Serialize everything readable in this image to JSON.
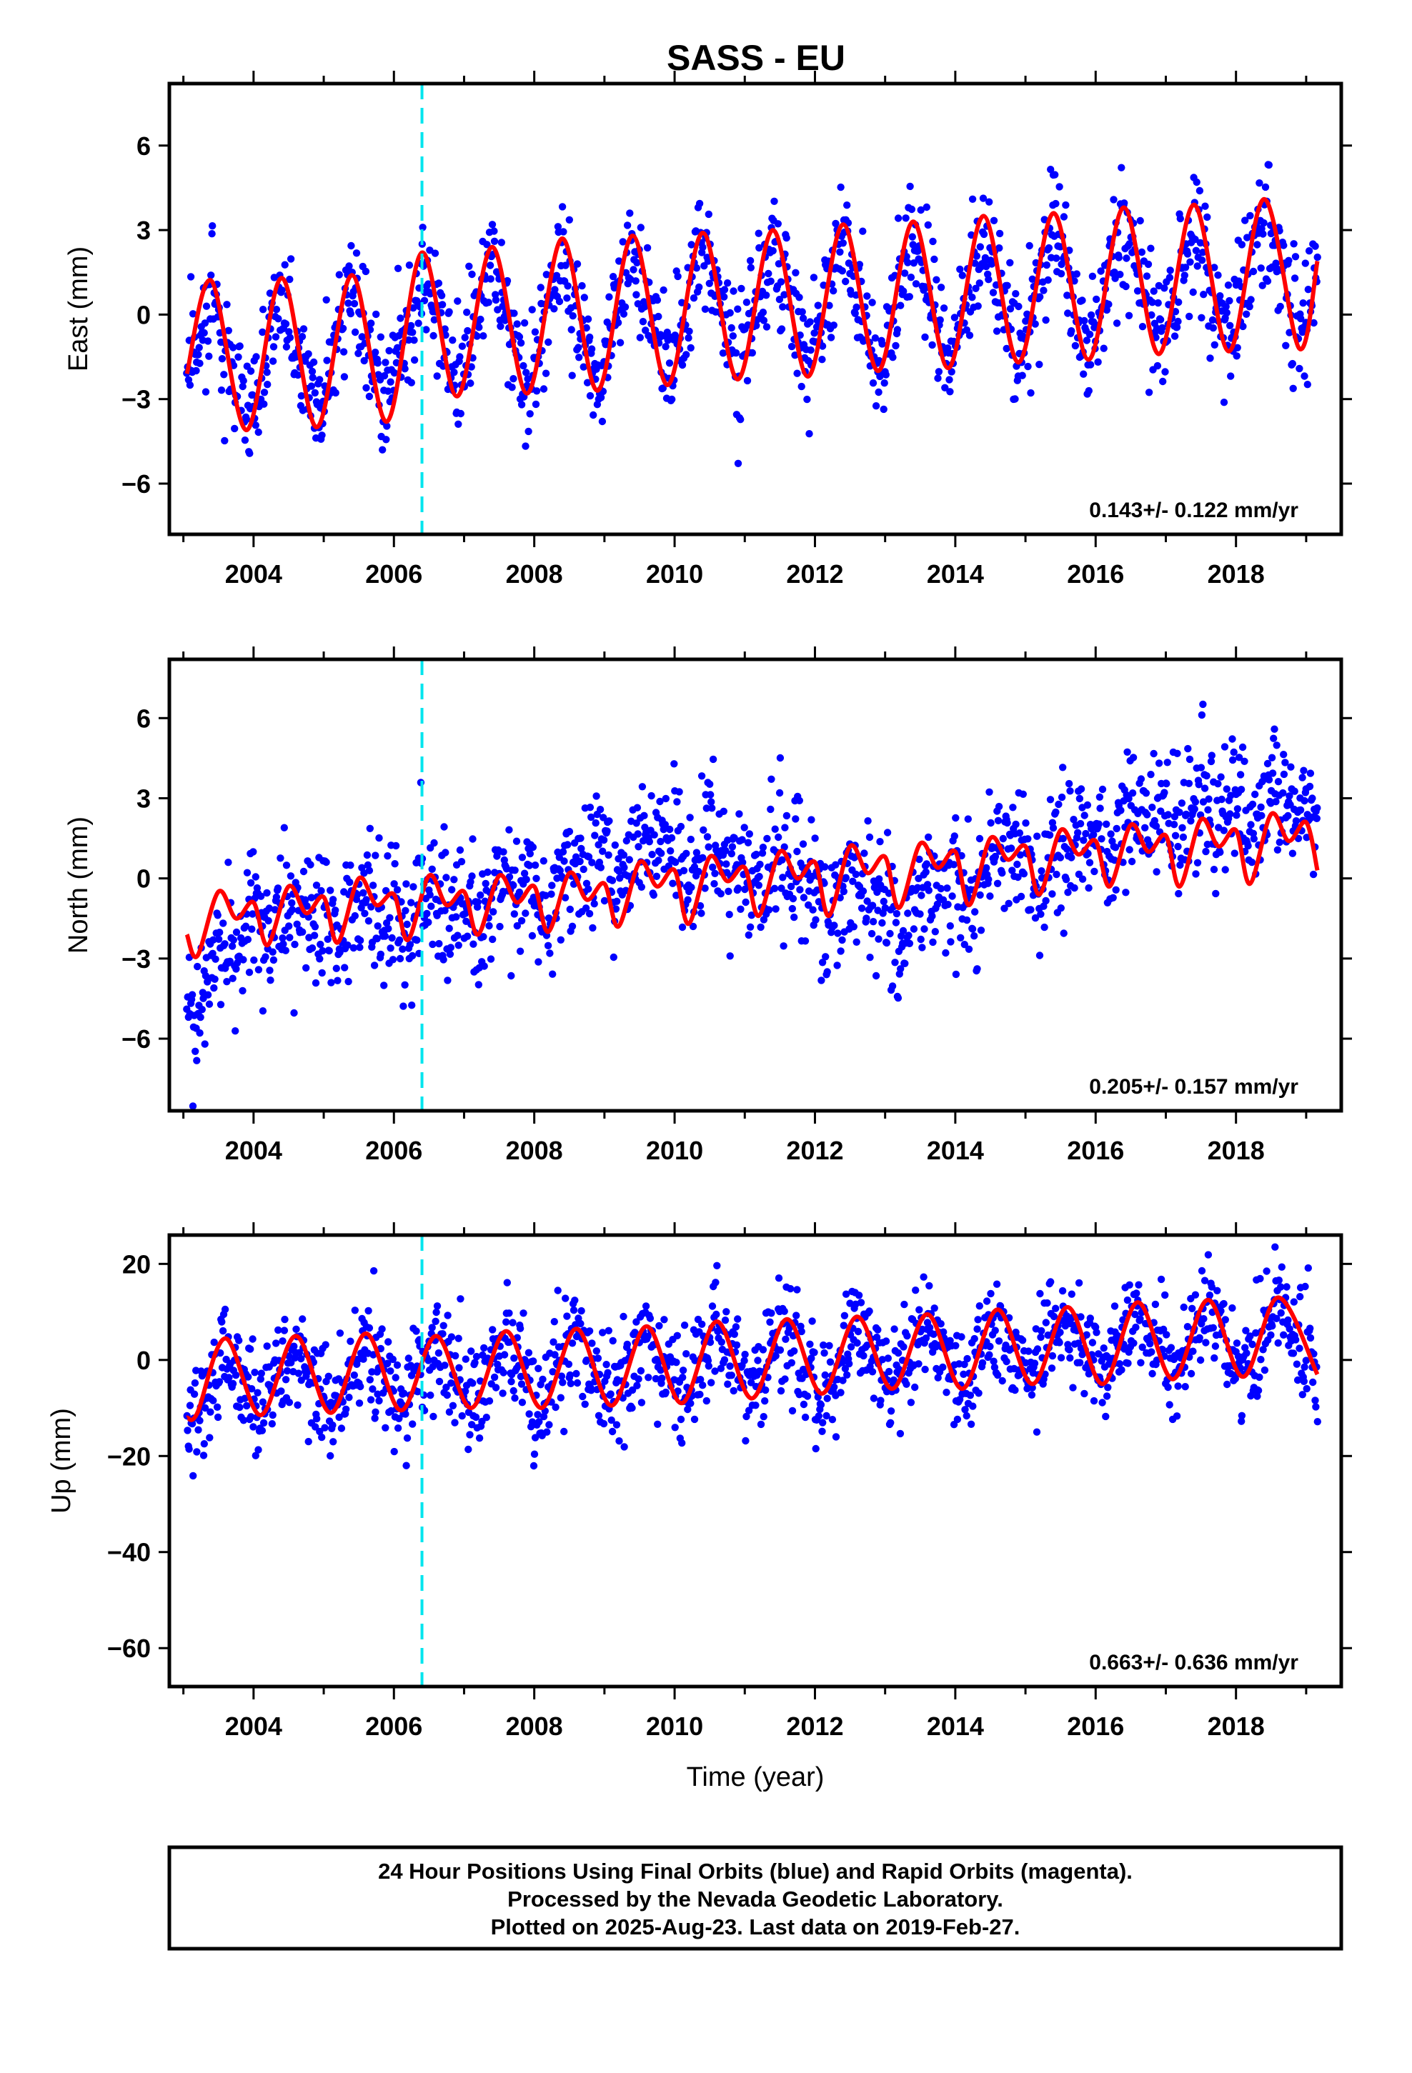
{
  "title": "SASS - EU",
  "colors": {
    "obs": "#0000ff",
    "model": "#ff0000",
    "event": "#00e5ee",
    "frame": "#000000"
  },
  "chart_data": [
    {
      "type": "scatter",
      "component": "east",
      "ylabel": "East (mm)",
      "xlabel": "",
      "xlim": [
        2002.8,
        2019.5
      ],
      "ylim": [
        -7.8,
        8.2
      ],
      "yticks": [
        6,
        3,
        0,
        -3,
        -6
      ],
      "xticks": [
        2004,
        2006,
        2008,
        2010,
        2012,
        2014,
        2016,
        2018
      ],
      "event_lines_x": [
        2006.4
      ],
      "rate": "0.143+/- 0.122 mm/yr",
      "series": [
        {
          "kind": "observations",
          "x_range": [
            2003.05,
            2019.16
          ],
          "trend_points": [
            [
              2003.05,
              -1.6
            ],
            [
              2019.16,
              1.0
            ]
          ],
          "scatter_sd": 1.1,
          "amp_annual": 2.0
        },
        {
          "kind": "model",
          "keypoints": [
            [
              2003.05,
              -2.1
            ],
            [
              2003.4,
              1.2
            ],
            [
              2003.9,
              -4.1
            ],
            [
              2004.4,
              1.3
            ],
            [
              2004.9,
              -4.0
            ],
            [
              2005.4,
              1.4
            ],
            [
              2005.9,
              -3.8
            ],
            [
              2006.4,
              2.2
            ],
            [
              2006.9,
              -2.9
            ],
            [
              2007.4,
              2.4
            ],
            [
              2007.9,
              -2.8
            ],
            [
              2008.4,
              2.7
            ],
            [
              2008.9,
              -2.7
            ],
            [
              2009.4,
              2.8
            ],
            [
              2009.9,
              -2.5
            ],
            [
              2010.4,
              2.9
            ],
            [
              2010.9,
              -2.3
            ],
            [
              2011.4,
              3.0
            ],
            [
              2011.9,
              -2.2
            ],
            [
              2012.4,
              3.2
            ],
            [
              2012.9,
              -2.0
            ],
            [
              2013.4,
              3.3
            ],
            [
              2013.9,
              -1.9
            ],
            [
              2014.4,
              3.5
            ],
            [
              2014.9,
              -1.7
            ],
            [
              2015.4,
              3.6
            ],
            [
              2015.9,
              -1.6
            ],
            [
              2016.4,
              3.8
            ],
            [
              2016.9,
              -1.4
            ],
            [
              2017.4,
              3.9
            ],
            [
              2017.9,
              -1.3
            ],
            [
              2018.4,
              4.1
            ],
            [
              2018.9,
              -1.2
            ],
            [
              2019.16,
              1.9
            ]
          ]
        }
      ]
    },
    {
      "type": "scatter",
      "component": "north",
      "ylabel": "North (mm)",
      "xlabel": "",
      "xlim": [
        2002.8,
        2019.5
      ],
      "ylim": [
        -8.7,
        8.2
      ],
      "yticks": [
        6,
        3,
        0,
        -3,
        -6
      ],
      "xticks": [
        2004,
        2006,
        2008,
        2010,
        2012,
        2014,
        2016,
        2018
      ],
      "event_lines_x": [
        2006.4
      ],
      "rate": "0.205+/- 0.157 mm/yr",
      "series": [
        {
          "kind": "observations",
          "x_range": [
            2003.05,
            2019.16
          ],
          "trend_points": [
            [
              2003.05,
              -3.8
            ],
            [
              2004.0,
              -1.0
            ],
            [
              2006.0,
              -0.6
            ],
            [
              2008.0,
              0.3
            ],
            [
              2009.6,
              1.8
            ],
            [
              2010.6,
              1.2
            ],
            [
              2012.0,
              -0.5
            ],
            [
              2013.3,
              -2.0
            ],
            [
              2014.3,
              -0.8
            ],
            [
              2015.3,
              0.6
            ],
            [
              2016.3,
              1.1
            ],
            [
              2017.3,
              2.2
            ],
            [
              2018.3,
              2.0
            ],
            [
              2019.16,
              1.6
            ]
          ],
          "scatter_sd": 1.2,
          "amp_annual": 0.6
        },
        {
          "kind": "model",
          "keypoints": [
            [
              2003.05,
              -2.1
            ],
            [
              2003.2,
              -2.9
            ],
            [
              2003.5,
              -0.5
            ],
            [
              2003.75,
              -1.5
            ],
            [
              2004.0,
              -0.9
            ],
            [
              2004.2,
              -2.5
            ],
            [
              2004.5,
              -0.3
            ],
            [
              2004.75,
              -1.3
            ],
            [
              2005.0,
              -0.7
            ],
            [
              2005.2,
              -2.4
            ],
            [
              2005.5,
              0.0
            ],
            [
              2005.75,
              -1.0
            ],
            [
              2006.0,
              -0.6
            ],
            [
              2006.2,
              -2.3
            ],
            [
              2006.5,
              0.1
            ],
            [
              2006.75,
              -1.0
            ],
            [
              2007.0,
              -0.5
            ],
            [
              2007.2,
              -2.1
            ],
            [
              2007.5,
              0.1
            ],
            [
              2007.75,
              -0.9
            ],
            [
              2008.0,
              -0.3
            ],
            [
              2008.2,
              -2.0
            ],
            [
              2008.5,
              0.2
            ],
            [
              2008.75,
              -0.8
            ],
            [
              2009.0,
              -0.2
            ],
            [
              2009.2,
              -1.8
            ],
            [
              2009.5,
              0.6
            ],
            [
              2009.75,
              -0.3
            ],
            [
              2010.0,
              0.3
            ],
            [
              2010.2,
              -1.7
            ],
            [
              2010.5,
              0.8
            ],
            [
              2010.75,
              -0.1
            ],
            [
              2011.0,
              0.4
            ],
            [
              2011.2,
              -1.4
            ],
            [
              2011.5,
              1.0
            ],
            [
              2011.75,
              0.0
            ],
            [
              2012.0,
              0.6
            ],
            [
              2012.2,
              -1.4
            ],
            [
              2012.5,
              1.2
            ],
            [
              2012.75,
              0.2
            ],
            [
              2013.0,
              0.8
            ],
            [
              2013.2,
              -1.1
            ],
            [
              2013.5,
              1.3
            ],
            [
              2013.75,
              0.4
            ],
            [
              2014.0,
              1.0
            ],
            [
              2014.2,
              -1.0
            ],
            [
              2014.5,
              1.5
            ],
            [
              2014.75,
              0.7
            ],
            [
              2015.0,
              1.2
            ],
            [
              2015.2,
              -0.6
            ],
            [
              2015.5,
              1.8
            ],
            [
              2015.75,
              0.9
            ],
            [
              2016.0,
              1.4
            ],
            [
              2016.2,
              -0.3
            ],
            [
              2016.5,
              2.0
            ],
            [
              2016.75,
              1.0
            ],
            [
              2017.0,
              1.6
            ],
            [
              2017.2,
              -0.3
            ],
            [
              2017.5,
              2.2
            ],
            [
              2017.75,
              1.2
            ],
            [
              2018.0,
              1.8
            ],
            [
              2018.2,
              -0.2
            ],
            [
              2018.5,
              2.4
            ],
            [
              2018.75,
              1.4
            ],
            [
              2019.0,
              2.1
            ],
            [
              2019.16,
              0.3
            ]
          ]
        }
      ]
    },
    {
      "type": "scatter",
      "component": "up",
      "ylabel": "Up (mm)",
      "xlabel": "Time (year)",
      "xlim": [
        2002.8,
        2019.5
      ],
      "ylim": [
        -68,
        26
      ],
      "yticks": [
        20,
        0,
        -20,
        -40,
        -60
      ],
      "xticks": [
        2004,
        2006,
        2008,
        2010,
        2012,
        2014,
        2016,
        2018
      ],
      "event_lines_x": [
        2006.4
      ],
      "rate": "0.663+/- 0.636 mm/yr",
      "series": [
        {
          "kind": "observations",
          "x_range": [
            2003.05,
            2019.16
          ],
          "trend_points": [
            [
              2003.05,
              -10.0
            ],
            [
              2019.16,
              4.0
            ]
          ],
          "scatter_sd": 5.5,
          "amp_annual": 8.0
        },
        {
          "kind": "model",
          "keypoints": [
            [
              2003.05,
              -12.0
            ],
            [
              2003.2,
              -11.0
            ],
            [
              2003.6,
              4.5
            ],
            [
              2004.1,
              -11.5
            ],
            [
              2004.6,
              5.0
            ],
            [
              2005.1,
              -11.0
            ],
            [
              2005.6,
              5.5
            ],
            [
              2006.1,
              -10.5
            ],
            [
              2006.6,
              5.0
            ],
            [
              2007.1,
              -10.0
            ],
            [
              2007.6,
              6.0
            ],
            [
              2008.1,
              -10.0
            ],
            [
              2008.6,
              6.5
            ],
            [
              2009.1,
              -9.5
            ],
            [
              2009.6,
              7.0
            ],
            [
              2010.1,
              -9.0
            ],
            [
              2010.6,
              8.0
            ],
            [
              2011.1,
              -8.0
            ],
            [
              2011.6,
              8.5
            ],
            [
              2012.1,
              -7.0
            ],
            [
              2012.6,
              9.0
            ],
            [
              2013.1,
              -6.0
            ],
            [
              2013.6,
              9.5
            ],
            [
              2014.1,
              -6.0
            ],
            [
              2014.6,
              10.5
            ],
            [
              2015.1,
              -5.0
            ],
            [
              2015.6,
              11.0
            ],
            [
              2016.1,
              -5.0
            ],
            [
              2016.6,
              12.0
            ],
            [
              2017.1,
              -4.0
            ],
            [
              2017.6,
              12.5
            ],
            [
              2018.1,
              -3.5
            ],
            [
              2018.6,
              13.0
            ],
            [
              2019.16,
              -3.0
            ]
          ]
        }
      ]
    }
  ],
  "footer": {
    "line1": "24 Hour Positions Using Final Orbits (blue) and Rapid Orbits (magenta).",
    "line2": "Processed by the Nevada Geodetic Laboratory.",
    "line3": "Plotted on 2025-Aug-23. Last data on 2019-Feb-27."
  }
}
